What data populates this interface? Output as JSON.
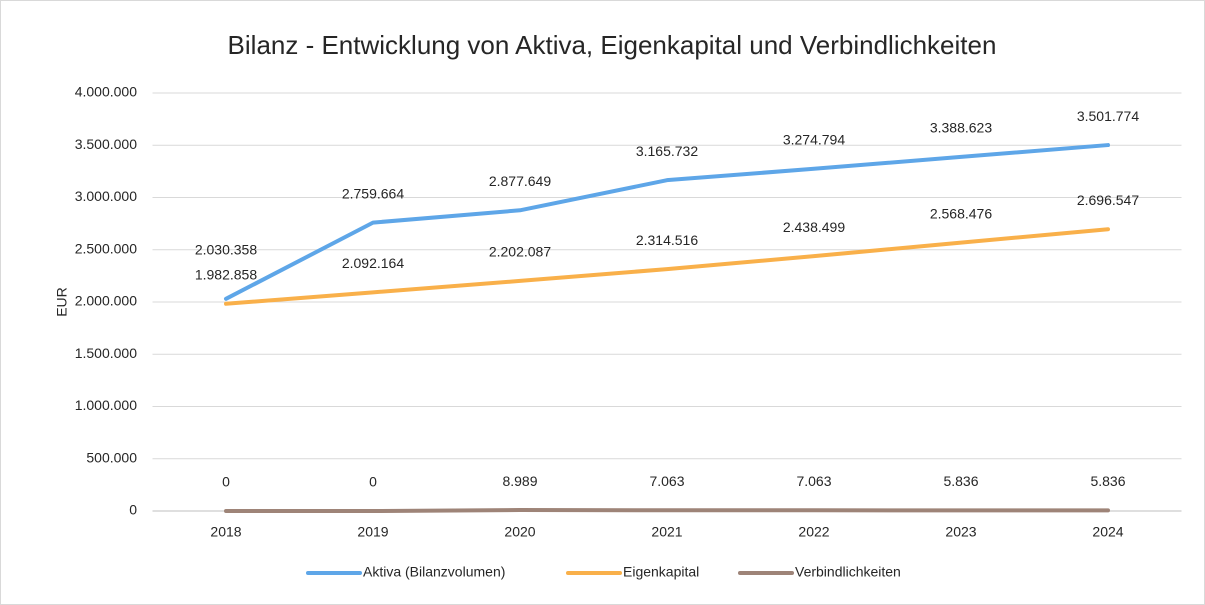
{
  "chart_data": {
    "type": "line",
    "title": "Bilanz - Entwicklung von Aktiva, Eigenkapital und Verbindlichkeiten",
    "y_label": "EUR",
    "categories": [
      "2018",
      "2019",
      "2020",
      "2021",
      "2022",
      "2023",
      "2024"
    ],
    "series": [
      {
        "name": "Aktiva (Bilanzvolumen)",
        "color": "#5ea6e8",
        "values": [
          2030358,
          2759664,
          2877649,
          3165732,
          3274794,
          3388623,
          3501774
        ],
        "value_labels": [
          "2.030.358",
          "2.759.664",
          "2.877.649",
          "3.165.732",
          "3.274.794",
          "3.388.623",
          "3.501.774"
        ]
      },
      {
        "name": "Eigenkapital",
        "color": "#f9b04a",
        "values": [
          1982858,
          2092164,
          2202087,
          2314516,
          2438499,
          2568476,
          2696547
        ],
        "value_labels": [
          "1.982.858",
          "2.092.164",
          "2.202.087",
          "2.314.516",
          "2.438.499",
          "2.568.476",
          "2.696.547"
        ]
      },
      {
        "name": "Verbindlichkeiten",
        "color": "#9e8478",
        "values": [
          0,
          0,
          8989,
          7063,
          7063,
          5836,
          5836
        ],
        "value_labels": [
          "0",
          "0",
          "8.989",
          "7.063",
          "7.063",
          "5.836",
          "5.836"
        ]
      }
    ],
    "ylim": [
      0,
      4000000
    ],
    "yticks": [
      0,
      {
        "value": 500000,
        "label": "500.000"
      },
      {
        "value": 1000000,
        "label": "1.000.000"
      },
      {
        "value": 1500000,
        "label": "1.500.000"
      },
      {
        "value": 2000000,
        "label": "2.000.000"
      },
      {
        "value": 2500000,
        "label": "2.500.000"
      },
      {
        "value": 3000000,
        "label": "3.000.000"
      },
      {
        "value": 3500000,
        "label": "3.500.000"
      },
      {
        "value": 4000000,
        "label": "4.000.000"
      }
    ],
    "grid": true,
    "legend": "bottom"
  }
}
